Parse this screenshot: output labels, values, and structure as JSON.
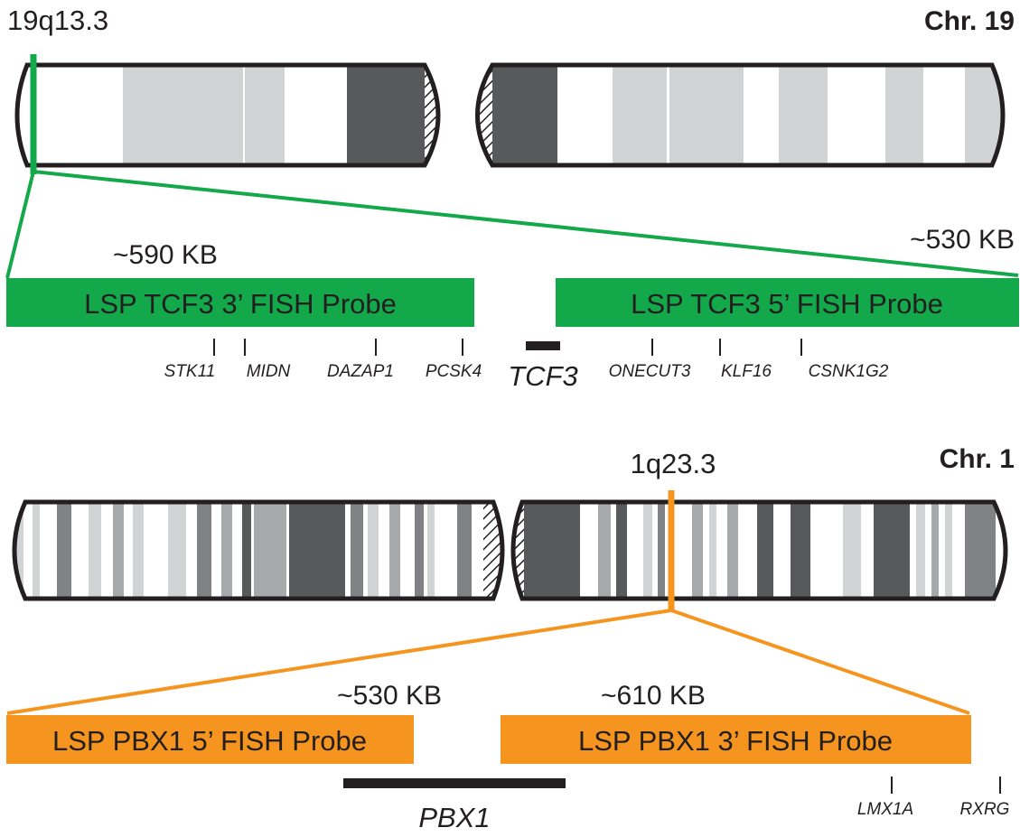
{
  "colors": {
    "green": "#13a84a",
    "orange": "#f5951f",
    "outline": "#231f20",
    "band_light": "#d1d3d4",
    "band_mid": "#a7a9ac",
    "band_dark": "#58595b",
    "band_darker": "#808285"
  },
  "chr19": {
    "title": "Chr. 19",
    "band": "19q13.3",
    "size_3prime": "~590 KB",
    "size_5prime": "~530 KB",
    "probe_3prime": "LSP TCF3 3’ FISH Probe",
    "probe_5prime": "LSP TCF3 5’ FISH Probe",
    "target_gene": "TCF3",
    "genes": [
      "STK11",
      "MIDN",
      "DAZAP1",
      "PCSK4",
      "ONECUT3",
      "KLF16",
      "CSNK1G2"
    ]
  },
  "chr1": {
    "title": "Chr. 1",
    "band": "1q23.3",
    "size_5prime": "~530 KB",
    "size_3prime": "~610 KB",
    "probe_5prime": "LSP PBX1 5’ FISH Probe",
    "probe_3prime": "LSP PBX1 3’ FISH Probe",
    "target_gene": "PBX1",
    "genes": [
      "LMX1A",
      "RXRG"
    ]
  }
}
